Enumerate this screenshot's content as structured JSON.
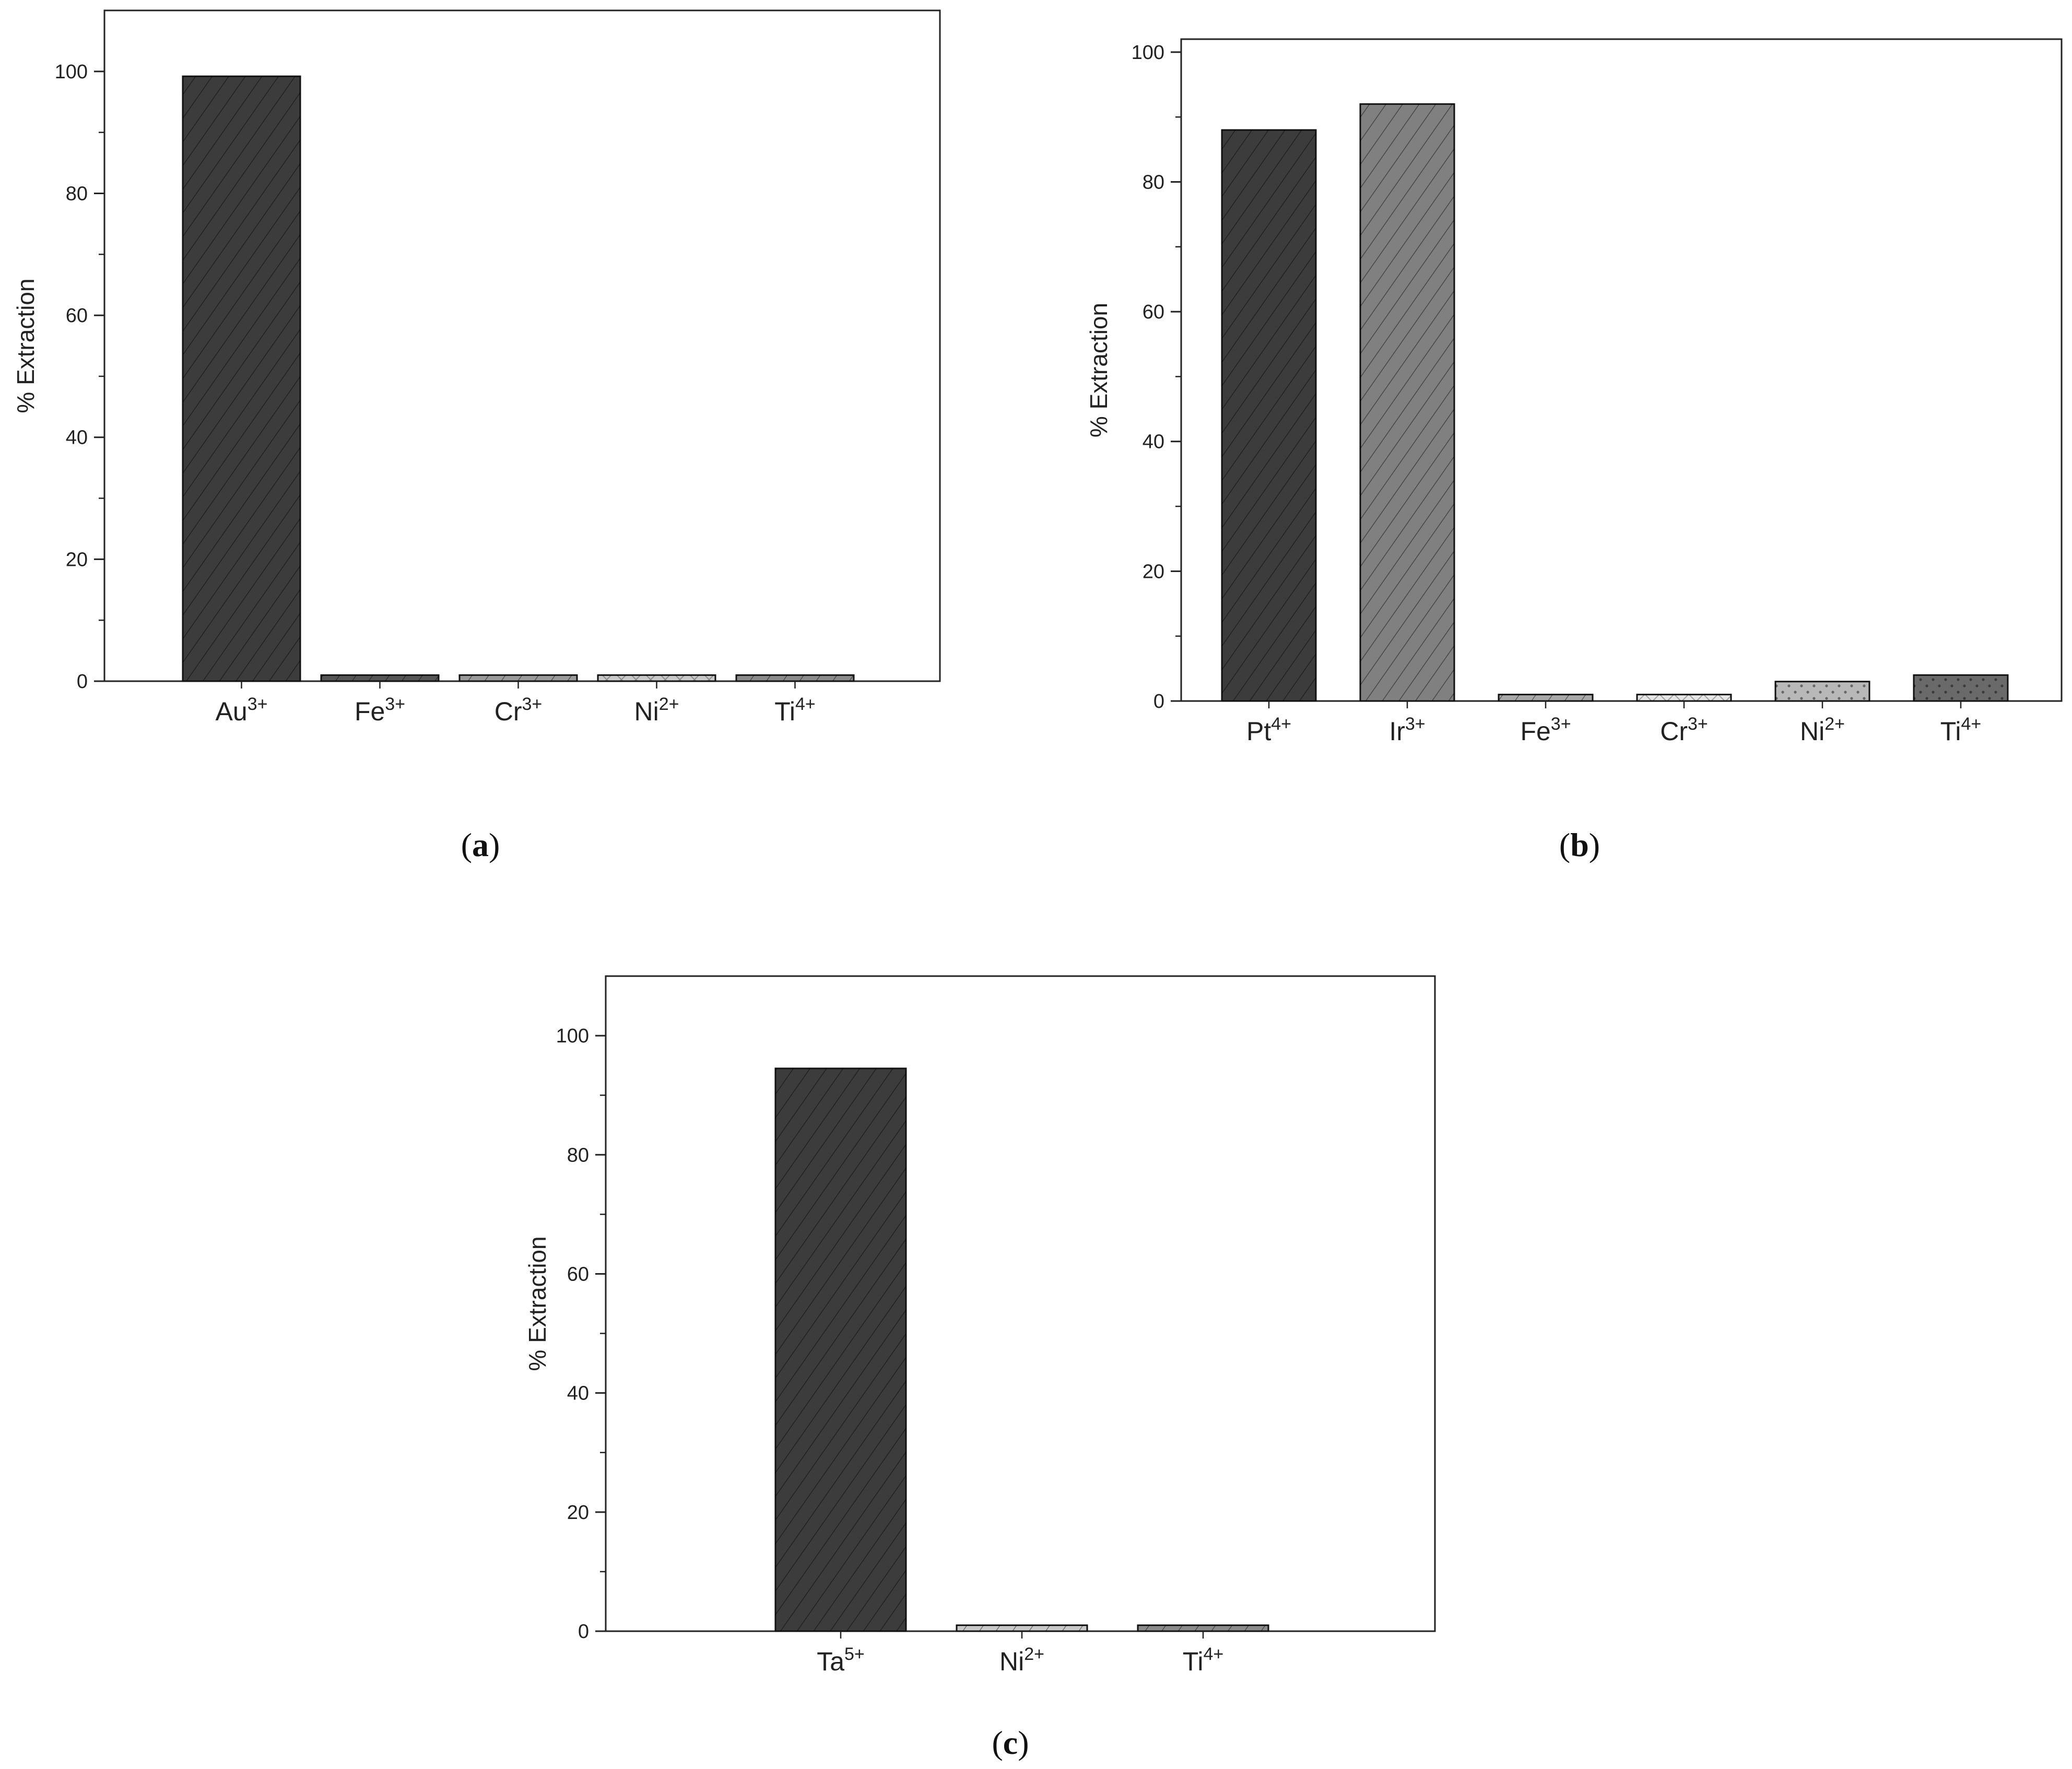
{
  "chart_data": [
    {
      "type": "bar",
      "caption": "a",
      "ylabel": "% Extraction",
      "xlabel": "",
      "ylim": [
        0,
        110
      ],
      "yticks": [
        0,
        20,
        40,
        60,
        80,
        100
      ],
      "categories": [
        {
          "base": "Au",
          "sup": "3+"
        },
        {
          "base": "Fe",
          "sup": "3+"
        },
        {
          "base": "Cr",
          "sup": "3+"
        },
        {
          "base": "Ni",
          "sup": "2+"
        },
        {
          "base": "Ti",
          "sup": "4+"
        }
      ],
      "values": [
        99.2,
        1.0,
        1.0,
        1.0,
        1.0
      ],
      "bar_colors": [
        "#3c3c3c",
        "#555555",
        "#9a9a9a",
        "#c8c8c8",
        "#8a8a8a"
      ],
      "patterns": [
        "hatch",
        "hatch",
        "hatch",
        "cross",
        "hatch"
      ],
      "grid": false
    },
    {
      "type": "bar",
      "caption": "b",
      "ylabel": "% Extraction",
      "xlabel": "",
      "ylim": [
        0,
        102
      ],
      "yticks": [
        0,
        20,
        40,
        60,
        80,
        100
      ],
      "categories": [
        {
          "base": "Pt",
          "sup": "4+"
        },
        {
          "base": "Ir",
          "sup": "3+"
        },
        {
          "base": "Fe",
          "sup": "3+"
        },
        {
          "base": "Cr",
          "sup": "3+"
        },
        {
          "base": "Ni",
          "sup": "2+"
        },
        {
          "base": "Ti",
          "sup": "4+"
        }
      ],
      "values": [
        88.0,
        92.0,
        1.0,
        1.0,
        3.0,
        4.0
      ],
      "bar_colors": [
        "#3c3c3c",
        "#808080",
        "#a8a8a8",
        "#e6e6e6",
        "#b8b8b8",
        "#6a6a6a"
      ],
      "patterns": [
        "hatch",
        "hatch",
        "hatch",
        "cross",
        "dots",
        "dots"
      ],
      "grid": false
    },
    {
      "type": "bar",
      "caption": "c",
      "ylabel": "% Extraction",
      "xlabel": "",
      "ylim": [
        0,
        110
      ],
      "yticks": [
        0,
        20,
        40,
        60,
        80,
        100
      ],
      "categories": [
        {
          "base": "Ta",
          "sup": "5+"
        },
        {
          "base": "Ni",
          "sup": "2+"
        },
        {
          "base": "Ti",
          "sup": "4+"
        }
      ],
      "values": [
        94.5,
        1.0,
        1.0
      ],
      "bar_colors": [
        "#3c3c3c",
        "#c8c8c8",
        "#8a8a8a"
      ],
      "patterns": [
        "hatch",
        "hatch",
        "hatch"
      ],
      "grid": false
    }
  ]
}
